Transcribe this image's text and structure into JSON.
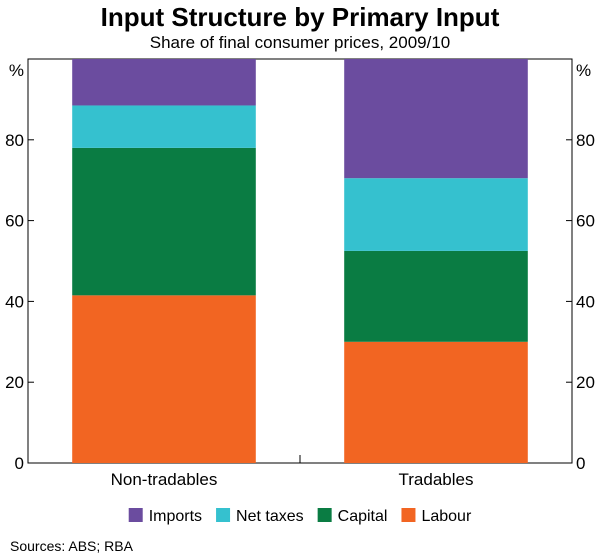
{
  "chart_data": {
    "type": "bar",
    "stacked": true,
    "title": "Input Structure by Primary Input",
    "subtitle": "Share of final consumer prices, 2009/10",
    "unit_left": "%",
    "unit_right": "%",
    "categories": [
      "Non-tradables",
      "Tradables"
    ],
    "series": [
      {
        "name": "Labour",
        "color": "#f26522",
        "values": [
          41.5,
          30.0
        ]
      },
      {
        "name": "Capital",
        "color": "#0a7c43",
        "values": [
          36.5,
          22.5
        ]
      },
      {
        "name": "Net taxes",
        "color": "#35c1cf",
        "values": [
          10.5,
          18.0
        ]
      },
      {
        "name": "Imports",
        "color": "#6b4c9f",
        "values": [
          11.5,
          29.5
        ]
      }
    ],
    "legend_order": [
      "Imports",
      "Net taxes",
      "Capital",
      "Labour"
    ],
    "legend_position": "bottom",
    "ylim": [
      0,
      100
    ],
    "yticks": [
      0,
      20,
      40,
      60,
      80
    ],
    "grid": false,
    "source": "Sources:   ABS; RBA"
  }
}
